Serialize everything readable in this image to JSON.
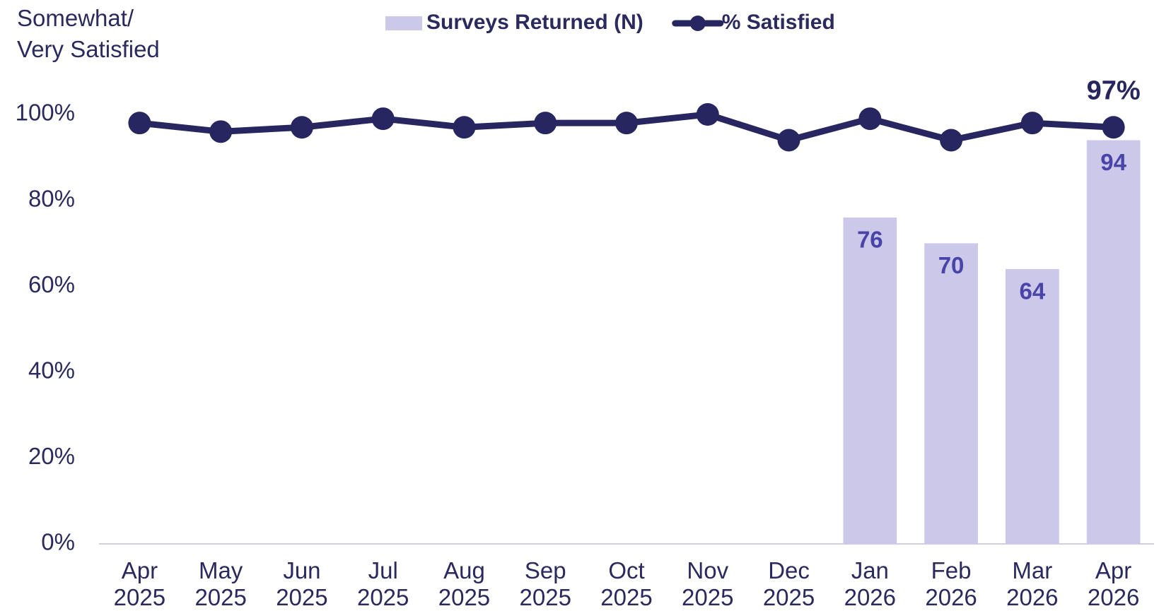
{
  "chart_data": {
    "type": "combo",
    "y_label": "Somewhat/ Very Satisfied",
    "categories": [
      "Apr 2025",
      "May 2025",
      "Jun 2025",
      "Jul 2025",
      "Aug 2025",
      "Sep 2025",
      "Oct 2025",
      "Nov 2025",
      "Dec 2025",
      "Jan 2026",
      "Feb 2026",
      "Mar 2026",
      "Apr 2026"
    ],
    "series": [
      {
        "name": "Surveys Returned (N)",
        "type": "bar",
        "color": "#cbc8ea",
        "label_color": "#4a44a8",
        "values": [
          null,
          null,
          null,
          null,
          null,
          null,
          null,
          null,
          null,
          76,
          70,
          64,
          94
        ]
      },
      {
        "name": "% Satisfied",
        "type": "line",
        "color": "#272660",
        "values": [
          98,
          96,
          97,
          99,
          97,
          98,
          98,
          100,
          94,
          99,
          94,
          98,
          97
        ],
        "value_labels": [
          null,
          null,
          null,
          null,
          null,
          null,
          null,
          null,
          null,
          null,
          null,
          null,
          "97%"
        ]
      }
    ],
    "ylim": [
      0,
      100
    ],
    "yticks": [
      {
        "value": 0,
        "label": "0%"
      },
      {
        "value": 20,
        "label": "20%"
      },
      {
        "value": 40,
        "label": "40%"
      },
      {
        "value": 60,
        "label": "60%"
      },
      {
        "value": 80,
        "label": "80%"
      },
      {
        "value": 100,
        "label": "100%"
      }
    ],
    "grid": false,
    "legend": "top"
  }
}
